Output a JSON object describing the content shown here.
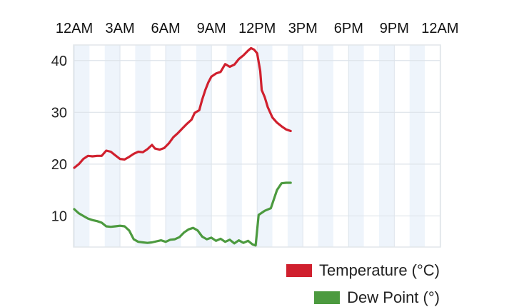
{
  "chart_data": {
    "type": "line",
    "x_axis": {
      "tick_labels": [
        "12AM",
        "3AM",
        "6AM",
        "9AM",
        "12PM",
        "3PM",
        "6PM",
        "9PM",
        "12AM"
      ],
      "range_hours": [
        0,
        24
      ]
    },
    "y_axis": {
      "ticks": [
        10,
        20,
        30,
        40
      ],
      "range": [
        4,
        43
      ]
    },
    "grid": true,
    "legend_placement": "bottom-right",
    "series": [
      {
        "name": "Temperature (°C)",
        "color": "#d0202e",
        "points": [
          [
            0.0,
            19.3
          ],
          [
            0.3,
            20.0
          ],
          [
            0.6,
            21.0
          ],
          [
            0.9,
            21.6
          ],
          [
            1.2,
            21.5
          ],
          [
            1.5,
            21.6
          ],
          [
            1.8,
            21.6
          ],
          [
            2.1,
            22.6
          ],
          [
            2.4,
            22.4
          ],
          [
            2.7,
            21.7
          ],
          [
            3.0,
            21.0
          ],
          [
            3.3,
            20.9
          ],
          [
            3.6,
            21.4
          ],
          [
            3.9,
            22.0
          ],
          [
            4.2,
            22.4
          ],
          [
            4.5,
            22.3
          ],
          [
            4.8,
            22.9
          ],
          [
            5.1,
            23.7
          ],
          [
            5.3,
            23.0
          ],
          [
            5.6,
            22.8
          ],
          [
            5.9,
            23.1
          ],
          [
            6.2,
            24.0
          ],
          [
            6.5,
            25.2
          ],
          [
            6.8,
            26.0
          ],
          [
            7.1,
            26.9
          ],
          [
            7.4,
            27.8
          ],
          [
            7.7,
            28.6
          ],
          [
            7.9,
            29.9
          ],
          [
            8.2,
            30.4
          ],
          [
            8.4,
            32.5
          ],
          [
            8.6,
            34.3
          ],
          [
            8.8,
            35.8
          ],
          [
            9.0,
            36.9
          ],
          [
            9.3,
            37.5
          ],
          [
            9.6,
            37.8
          ],
          [
            9.9,
            39.3
          ],
          [
            10.2,
            38.8
          ],
          [
            10.5,
            39.2
          ],
          [
            10.8,
            40.3
          ],
          [
            11.1,
            41.0
          ],
          [
            11.4,
            41.9
          ],
          [
            11.6,
            42.4
          ],
          [
            11.8,
            42.1
          ],
          [
            12.0,
            41.4
          ],
          [
            12.2,
            38.0
          ],
          [
            12.3,
            34.3
          ],
          [
            12.5,
            32.9
          ],
          [
            12.7,
            31.0
          ],
          [
            13.0,
            29.0
          ],
          [
            13.3,
            28.0
          ],
          [
            13.6,
            27.3
          ],
          [
            13.9,
            26.7
          ],
          [
            14.2,
            26.4
          ]
        ]
      },
      {
        "name": "Dew Point (°)",
        "color": "#4c9a3f",
        "points": [
          [
            0.0,
            11.3
          ],
          [
            0.3,
            10.5
          ],
          [
            0.6,
            10.0
          ],
          [
            0.9,
            9.5
          ],
          [
            1.2,
            9.2
          ],
          [
            1.5,
            9.0
          ],
          [
            1.8,
            8.7
          ],
          [
            2.1,
            8.0
          ],
          [
            2.4,
            7.9
          ],
          [
            2.7,
            8.0
          ],
          [
            3.0,
            8.1
          ],
          [
            3.3,
            8.0
          ],
          [
            3.6,
            7.2
          ],
          [
            3.9,
            5.5
          ],
          [
            4.2,
            5.0
          ],
          [
            4.5,
            4.9
          ],
          [
            4.8,
            4.8
          ],
          [
            5.1,
            4.9
          ],
          [
            5.4,
            5.1
          ],
          [
            5.7,
            5.3
          ],
          [
            6.0,
            5.0
          ],
          [
            6.3,
            5.4
          ],
          [
            6.6,
            5.5
          ],
          [
            6.9,
            5.9
          ],
          [
            7.2,
            6.8
          ],
          [
            7.5,
            7.4
          ],
          [
            7.8,
            7.7
          ],
          [
            8.1,
            7.2
          ],
          [
            8.4,
            6.0
          ],
          [
            8.7,
            5.5
          ],
          [
            9.0,
            5.8
          ],
          [
            9.3,
            5.2
          ],
          [
            9.6,
            5.6
          ],
          [
            9.9,
            5.0
          ],
          [
            10.2,
            5.4
          ],
          [
            10.5,
            4.7
          ],
          [
            10.8,
            5.3
          ],
          [
            11.1,
            4.8
          ],
          [
            11.4,
            5.2
          ],
          [
            11.7,
            4.5
          ],
          [
            11.9,
            4.3
          ],
          [
            12.1,
            10.2
          ],
          [
            12.5,
            11.0
          ],
          [
            12.9,
            11.5
          ],
          [
            13.3,
            15.0
          ],
          [
            13.6,
            16.3
          ],
          [
            13.9,
            16.4
          ],
          [
            14.2,
            16.4
          ]
        ]
      }
    ]
  }
}
